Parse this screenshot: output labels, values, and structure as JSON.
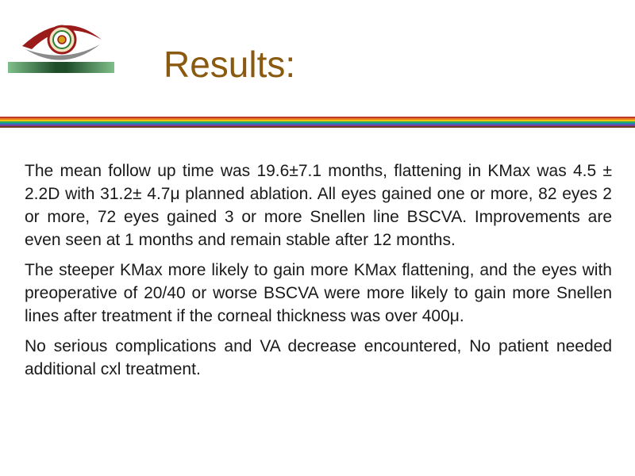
{
  "slide": {
    "title": "Results:",
    "paragraphs": [
      "The mean follow up time was 19.6±7.1 months, flattening in KMax was 4.5 ± 2.2D with 31.2± 4.7μ planned ablation. All eyes gained one or more, 82 eyes 2 or more, 72 eyes gained 3 or more Snellen line BSCVA. Improvements are even seen at 1 months and remain stable after 12 months.",
      "The steeper KMax more likely to gain more KMax flattening, and the eyes with preoperative of 20/40 or worse BSCVA were more likely to gain more Snellen lines after treatment if the corneal thickness was over 400μ.",
      "No serious complications and VA decrease encountered, No patient needed additional cxl treatment."
    ]
  },
  "logo": {
    "icon": "eye-emblem-icon",
    "colors": [
      "#9b1b1b",
      "#2e7d32",
      "#d4a017"
    ]
  },
  "divider": {
    "colors": [
      "#c0392b",
      "#e67e22",
      "#f1c40f",
      "#27ae60",
      "#2980b9",
      "#7d3c98",
      "#6d3b1f"
    ]
  }
}
